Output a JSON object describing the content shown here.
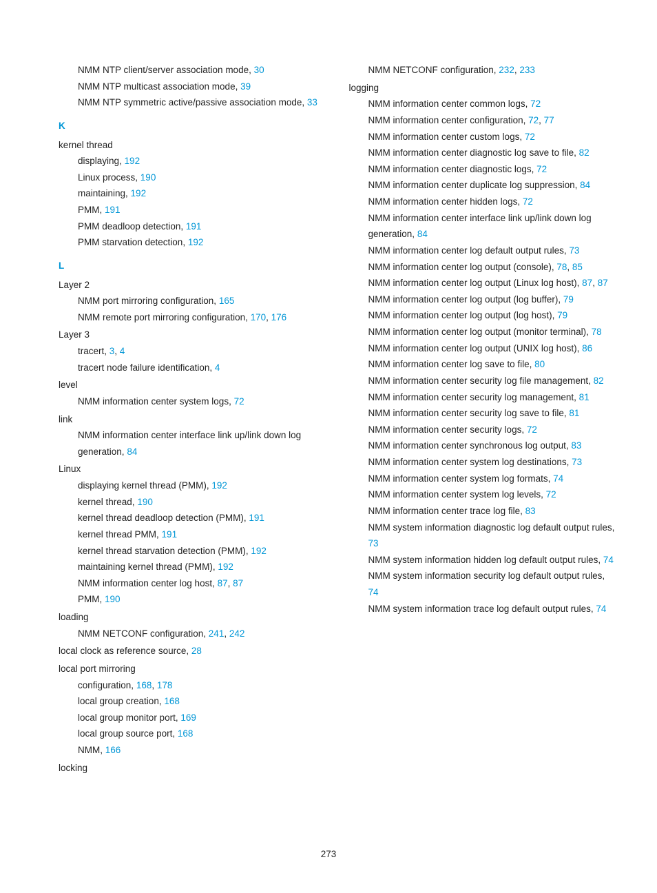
{
  "pageNumber": "273",
  "letters": {
    "K": "K",
    "L": "L"
  },
  "col1": {
    "top": [
      {
        "text": "NMM NTP client/server association mode, ",
        "refs": [
          "30"
        ]
      },
      {
        "text": "NMM NTP multicast association mode, ",
        "refs": [
          "39"
        ]
      },
      {
        "text": "NMM NTP symmetric active/passive association mode, ",
        "refs": [
          "33"
        ]
      }
    ],
    "kernelThread": {
      "label": "kernel thread",
      "items": [
        {
          "text": "displaying, ",
          "refs": [
            "192"
          ]
        },
        {
          "text": "Linux process, ",
          "refs": [
            "190"
          ]
        },
        {
          "text": "maintaining, ",
          "refs": [
            "192"
          ]
        },
        {
          "text": "PMM, ",
          "refs": [
            "191"
          ]
        },
        {
          "text": "PMM deadloop detection, ",
          "refs": [
            "191"
          ]
        },
        {
          "text": "PMM starvation detection, ",
          "refs": [
            "192"
          ]
        }
      ]
    },
    "layer2": {
      "label": "Layer 2",
      "items": [
        {
          "text": "NMM port mirroring configuration, ",
          "refs": [
            "165"
          ]
        },
        {
          "text": "NMM remote port mirroring configuration, ",
          "refs": [
            "170",
            "176"
          ]
        }
      ]
    },
    "layer3": {
      "label": "Layer 3",
      "items": [
        {
          "text": "tracert, ",
          "refs": [
            "3",
            "4"
          ]
        },
        {
          "text": "tracert node failure identification, ",
          "refs": [
            "4"
          ]
        }
      ]
    },
    "level": {
      "label": "level",
      "items": [
        {
          "text": "NMM information center system logs, ",
          "refs": [
            "72"
          ]
        }
      ]
    },
    "link": {
      "label": "link",
      "items": [
        {
          "text": "NMM information center interface link up/link down log generation, ",
          "refs": [
            "84"
          ]
        }
      ]
    },
    "linux": {
      "label": "Linux",
      "items": [
        {
          "text": "displaying kernel thread (PMM), ",
          "refs": [
            "192"
          ]
        },
        {
          "text": "kernel thread, ",
          "refs": [
            "190"
          ]
        },
        {
          "text": "kernel thread deadloop detection (PMM), ",
          "refs": [
            "191"
          ]
        },
        {
          "text": "kernel thread PMM, ",
          "refs": [
            "191"
          ]
        },
        {
          "text": "kernel thread starvation detection (PMM), ",
          "refs": [
            "192"
          ]
        },
        {
          "text": "maintaining kernel thread (PMM), ",
          "refs": [
            "192"
          ]
        },
        {
          "text": "NMM information center log host, ",
          "refs": [
            "87",
            "87"
          ]
        },
        {
          "text": "PMM, ",
          "refs": [
            "190"
          ]
        }
      ]
    },
    "loading": {
      "label": "loading",
      "items": [
        {
          "text": "NMM NETCONF configuration, ",
          "refs": [
            "241",
            "242"
          ]
        }
      ]
    },
    "localClock": {
      "text": "local clock as reference source, ",
      "refs": [
        "28"
      ]
    },
    "localPortMirroring": {
      "label": "local port mirroring",
      "items": [
        {
          "text": "configuration, ",
          "refs": [
            "168",
            "178"
          ]
        },
        {
          "text": "local group creation, ",
          "refs": [
            "168"
          ]
        },
        {
          "text": "local group monitor port, ",
          "refs": [
            "169"
          ]
        },
        {
          "text": "local group source port, ",
          "refs": [
            "168"
          ]
        },
        {
          "text": "NMM, ",
          "refs": [
            "166"
          ]
        }
      ]
    },
    "locking": {
      "label": "locking"
    }
  },
  "col2": {
    "top": [
      {
        "text": "NMM NETCONF configuration, ",
        "refs": [
          "232",
          "233"
        ]
      }
    ],
    "logging": {
      "label": "logging",
      "items": [
        {
          "text": "NMM information center common logs, ",
          "refs": [
            "72"
          ]
        },
        {
          "text": "NMM information center configuration, ",
          "refs": [
            "72",
            "77"
          ]
        },
        {
          "text": "NMM information center custom logs, ",
          "refs": [
            "72"
          ]
        },
        {
          "text": "NMM information center diagnostic log save to file, ",
          "refs": [
            "82"
          ]
        },
        {
          "text": "NMM information center diagnostic logs, ",
          "refs": [
            "72"
          ]
        },
        {
          "text": "NMM information center duplicate log suppression, ",
          "refs": [
            "84"
          ]
        },
        {
          "text": "NMM information center hidden logs, ",
          "refs": [
            "72"
          ]
        },
        {
          "text": "NMM information center interface link up/link down log generation, ",
          "refs": [
            "84"
          ]
        },
        {
          "text": "NMM information center log default output rules, ",
          "refs": [
            "73"
          ]
        },
        {
          "text": "NMM information center log output (console), ",
          "refs": [
            "78",
            "85"
          ]
        },
        {
          "text": "NMM information center log output (Linux log host), ",
          "refs": [
            "87",
            "87"
          ]
        },
        {
          "text": "NMM information center log output (log buffer), ",
          "refs": [
            "79"
          ]
        },
        {
          "text": "NMM information center log output (log host), ",
          "refs": [
            "79"
          ]
        },
        {
          "text": "NMM information center log output (monitor terminal), ",
          "refs": [
            "78"
          ]
        },
        {
          "text": "NMM information center log output (UNIX log host), ",
          "refs": [
            "86"
          ]
        },
        {
          "text": "NMM information center log save to file, ",
          "refs": [
            "80"
          ]
        },
        {
          "text": "NMM information center security log file management, ",
          "refs": [
            "82"
          ]
        },
        {
          "text": "NMM information center security log management, ",
          "refs": [
            "81"
          ]
        },
        {
          "text": "NMM information center security log save to file, ",
          "refs": [
            "81"
          ]
        },
        {
          "text": "NMM information center security logs, ",
          "refs": [
            "72"
          ]
        },
        {
          "text": "NMM information center synchronous log output, ",
          "refs": [
            "83"
          ]
        },
        {
          "text": "NMM information center system log destinations, ",
          "refs": [
            "73"
          ]
        },
        {
          "text": "NMM information center system log formats, ",
          "refs": [
            "74"
          ]
        },
        {
          "text": "NMM information center system log levels, ",
          "refs": [
            "72"
          ]
        },
        {
          "text": "NMM information center trace log file, ",
          "refs": [
            "83"
          ]
        },
        {
          "text": "NMM system information diagnostic log default output rules, ",
          "refs": [
            "73"
          ]
        },
        {
          "text": "NMM system information hidden log default output rules, ",
          "refs": [
            "74"
          ]
        },
        {
          "text": "NMM system information security log default output rules, ",
          "refs": [
            "74"
          ]
        },
        {
          "text": "NMM system information trace log default output rules, ",
          "refs": [
            "74"
          ]
        }
      ]
    }
  }
}
